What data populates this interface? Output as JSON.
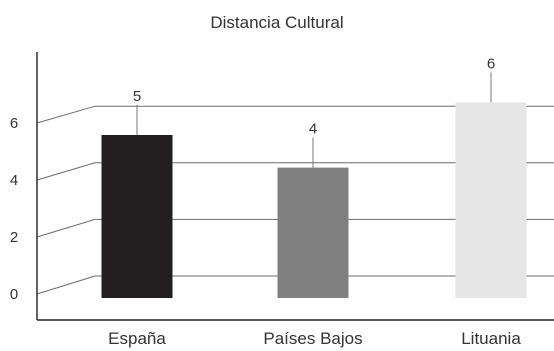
{
  "chart_data": {
    "type": "bar",
    "title": "Distancia Cultural",
    "categories": [
      "España",
      "Países Bajos",
      "Lituania"
    ],
    "values": [
      5,
      4,
      6
    ],
    "bar_colors": [
      "#231f20",
      "#808080",
      "#e6e6e6"
    ],
    "yticks": [
      0,
      2,
      4,
      6
    ],
    "ylim": [
      0,
      7
    ],
    "grid": true,
    "style": "3d-perspective"
  }
}
